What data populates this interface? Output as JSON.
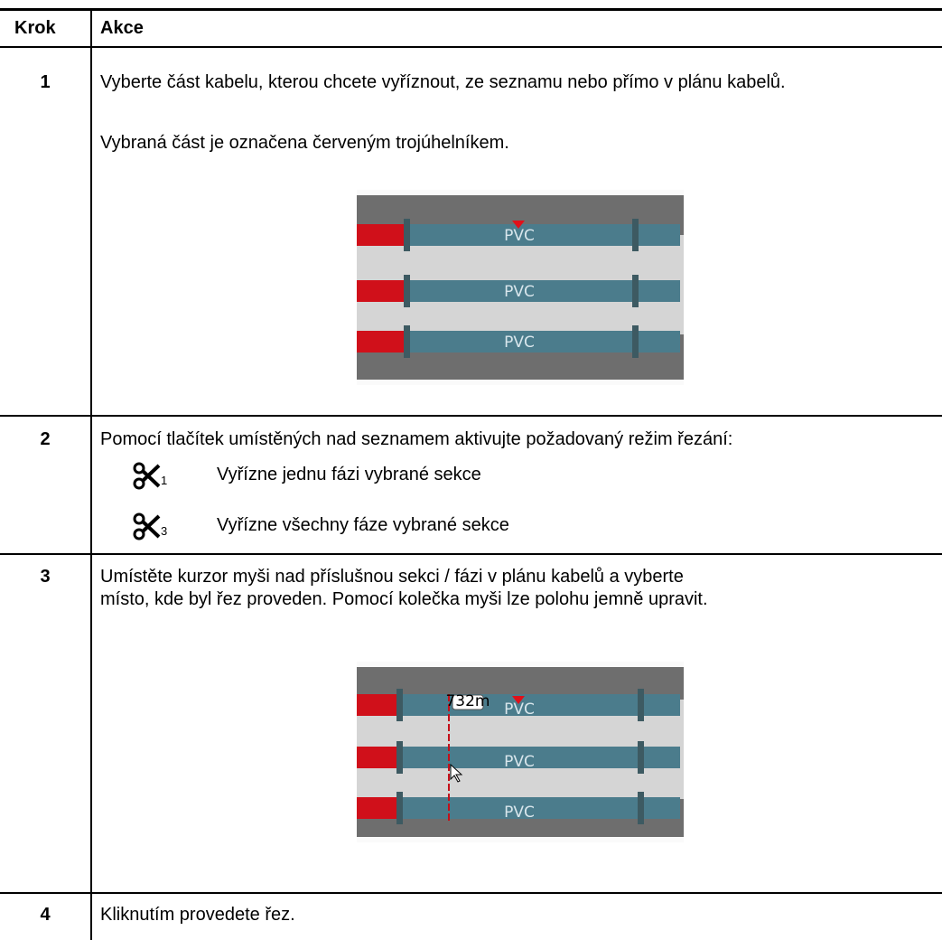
{
  "table": {
    "header": [
      "Krok",
      "Akce"
    ],
    "rows": [
      {
        "step": "1",
        "paragraphs": [
          "Vyberte část kabelu, kterou chcete vyříznout, ze seznamu nebo přímo v plánu kabelů.",
          "Vybraná část je označena červeným trojúhelníkem."
        ],
        "figure": {
          "labels": [
            "PVC",
            "PVC",
            "PVC"
          ]
        }
      },
      {
        "step": "2",
        "paragraphs": [
          "Pomocí tlačítek umístěných nad seznamem aktivujte požadovaný režim řezání:"
        ],
        "options": [
          {
            "icon_digit": "1",
            "text": "Vyřízne jednu fázi vybrané sekce"
          },
          {
            "icon_digit": "3",
            "text": "Vyřízne všechny fáze vybrané sekce"
          }
        ]
      },
      {
        "step": "3",
        "paragraphs": [
          "Umístěte kurzor myši nad příslušnou sekci / fázi v plánu kabelů a vyberte místo, kde byl řez proveden. Pomocí kolečka myši lze polohu jemně upravit."
        ],
        "figure": {
          "labels": [
            "PVC",
            "PVC",
            "PVC"
          ],
          "marker": "732m"
        }
      },
      {
        "step": "4",
        "paragraphs": [
          "Kliknutím provedete řez."
        ]
      }
    ]
  }
}
